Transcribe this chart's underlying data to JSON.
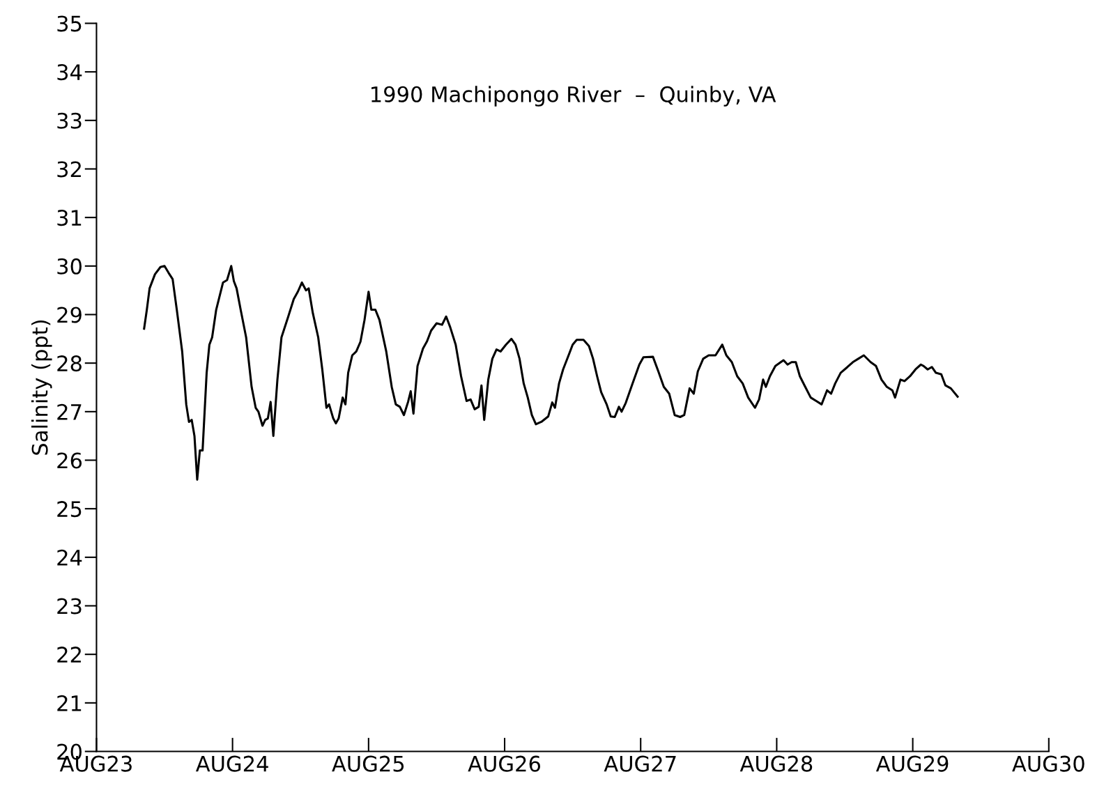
{
  "chart_data": {
    "type": "line",
    "title": "1990 Machipongo River  –  Quinby, VA",
    "ylabel": "Salinity (ppt)",
    "x": [
      "1990-08-23T08:24",
      "1990-08-23T08:53",
      "1990-08-23T09:22",
      "1990-08-23T10:19",
      "1990-08-23T11:17",
      "1990-08-23T12:00",
      "1990-08-23T12:43",
      "1990-08-23T13:26",
      "1990-08-23T14:10",
      "1990-08-23T15:07",
      "1990-08-23T15:50",
      "1990-08-23T16:19",
      "1990-08-23T16:48",
      "1990-08-23T17:17",
      "1990-08-23T17:46",
      "1990-08-23T18:14",
      "1990-08-23T18:43",
      "1990-08-23T19:26",
      "1990-08-23T19:55",
      "1990-08-23T20:24",
      "1990-08-23T21:07",
      "1990-08-23T22:19",
      "1990-08-23T23:02",
      "1990-08-23T23:46",
      "1990-08-24T00:14",
      "1990-08-24T00:43",
      "1990-08-24T01:26",
      "1990-08-24T02:24",
      "1990-08-24T03:22",
      "1990-08-24T04:05",
      "1990-08-24T04:34",
      "1990-08-24T05:17",
      "1990-08-24T05:46",
      "1990-08-24T06:14",
      "1990-08-24T06:43",
      "1990-08-24T07:12",
      "1990-08-24T07:55",
      "1990-08-24T08:38",
      "1990-08-24T09:50",
      "1990-08-24T10:48",
      "1990-08-24T11:31",
      "1990-08-24T12:14",
      "1990-08-24T12:58",
      "1990-08-24T13:26",
      "1990-08-24T14:10",
      "1990-08-24T15:07",
      "1990-08-24T15:50",
      "1990-08-24T16:34",
      "1990-08-24T17:02",
      "1990-08-24T17:46",
      "1990-08-24T18:14",
      "1990-08-24T18:43",
      "1990-08-24T19:26",
      "1990-08-24T19:55",
      "1990-08-24T20:24",
      "1990-08-24T21:07",
      "1990-08-24T21:50",
      "1990-08-24T22:34",
      "1990-08-24T23:17",
      "1990-08-25T00:00",
      "1990-08-25T00:29",
      "1990-08-25T01:12",
      "1990-08-25T01:55",
      "1990-08-25T03:07",
      "1990-08-25T04:05",
      "1990-08-25T04:48",
      "1990-08-25T05:31",
      "1990-08-25T06:14",
      "1990-08-25T06:58",
      "1990-08-25T07:26",
      "1990-08-25T07:55",
      "1990-08-25T08:38",
      "1990-08-25T09:36",
      "1990-08-25T10:19",
      "1990-08-25T11:02",
      "1990-08-25T12:00",
      "1990-08-25T12:58",
      "1990-08-25T13:41",
      "1990-08-25T14:24",
      "1990-08-25T15:22",
      "1990-08-25T16:19",
      "1990-08-25T17:17",
      "1990-08-25T18:00",
      "1990-08-25T18:43",
      "1990-08-25T19:26",
      "1990-08-25T19:55",
      "1990-08-25T20:24",
      "1990-08-25T21:07",
      "1990-08-25T21:50",
      "1990-08-25T22:34",
      "1990-08-25T23:17",
      "1990-08-26T00:14",
      "1990-08-26T01:12",
      "1990-08-26T01:55",
      "1990-08-26T02:38",
      "1990-08-26T03:22",
      "1990-08-26T04:05",
      "1990-08-26T04:48",
      "1990-08-26T05:31",
      "1990-08-26T06:29",
      "1990-08-26T07:41",
      "1990-08-26T08:24",
      "1990-08-26T08:53",
      "1990-08-26T09:36",
      "1990-08-26T10:19",
      "1990-08-26T11:17",
      "1990-08-26T12:00",
      "1990-08-26T12:43",
      "1990-08-26T13:55",
      "1990-08-26T14:53",
      "1990-08-26T15:36",
      "1990-08-26T16:19",
      "1990-08-26T17:02",
      "1990-08-26T18:00",
      "1990-08-26T18:43",
      "1990-08-26T19:26",
      "1990-08-26T20:10",
      "1990-08-26T20:38",
      "1990-08-26T21:22",
      "1990-08-26T22:34",
      "1990-08-26T23:46",
      "1990-08-27T00:29",
      "1990-08-27T02:10",
      "1990-08-27T03:07",
      "1990-08-27T04:05",
      "1990-08-27T05:02",
      "1990-08-27T06:00",
      "1990-08-27T06:58",
      "1990-08-27T07:41",
      "1990-08-27T08:38",
      "1990-08-27T09:22",
      "1990-08-27T10:05",
      "1990-08-27T11:02",
      "1990-08-27T12:00",
      "1990-08-27T13:12",
      "1990-08-27T14:24",
      "1990-08-27T15:07",
      "1990-08-27T16:05",
      "1990-08-27T17:02",
      "1990-08-27T18:00",
      "1990-08-27T18:58",
      "1990-08-27T20:10",
      "1990-08-27T20:53",
      "1990-08-27T21:36",
      "1990-08-27T22:05",
      "1990-08-27T22:48",
      "1990-08-27T23:46",
      "1990-08-28T00:43",
      "1990-08-28T01:12",
      "1990-08-28T01:55",
      "1990-08-28T02:38",
      "1990-08-28T03:22",
      "1990-08-28T04:05",
      "1990-08-28T05:02",
      "1990-08-28T06:00",
      "1990-08-28T06:58",
      "1990-08-28T07:55",
      "1990-08-28T08:53",
      "1990-08-28T09:36",
      "1990-08-28T10:19",
      "1990-08-28T11:17",
      "1990-08-28T12:29",
      "1990-08-28T13:26",
      "1990-08-28T14:24",
      "1990-08-28T15:22",
      "1990-08-28T16:34",
      "1990-08-28T17:31",
      "1990-08-28T18:29",
      "1990-08-28T19:26",
      "1990-08-28T20:24",
      "1990-08-28T20:53",
      "1990-08-28T21:50",
      "1990-08-28T22:34",
      "1990-08-28T23:31",
      "1990-08-29T00:29",
      "1990-08-29T01:26",
      "1990-08-29T01:55",
      "1990-08-29T02:38",
      "1990-08-29T03:22",
      "1990-08-29T04:05",
      "1990-08-29T05:02",
      "1990-08-29T05:46",
      "1990-08-29T06:43",
      "1990-08-29T07:55"
    ],
    "values": [
      28.71,
      29.1,
      29.54,
      29.83,
      29.98,
      30.0,
      29.86,
      29.73,
      29.1,
      28.24,
      27.15,
      26.79,
      26.83,
      26.5,
      25.6,
      26.2,
      26.2,
      27.8,
      28.38,
      28.53,
      29.1,
      29.66,
      29.71,
      30.0,
      29.69,
      29.54,
      29.1,
      28.53,
      27.51,
      27.08,
      27.0,
      26.71,
      26.83,
      26.86,
      27.2,
      26.5,
      27.66,
      28.53,
      28.96,
      29.32,
      29.47,
      29.66,
      29.5,
      29.54,
      29.03,
      28.53,
      27.87,
      27.08,
      27.15,
      26.86,
      26.76,
      26.86,
      27.29,
      27.15,
      27.8,
      28.16,
      28.24,
      28.44,
      28.89,
      29.47,
      29.1,
      29.1,
      28.89,
      28.24,
      27.51,
      27.15,
      27.1,
      26.93,
      27.2,
      27.42,
      26.96,
      27.94,
      28.3,
      28.45,
      28.67,
      28.82,
      28.79,
      28.96,
      28.74,
      28.38,
      27.73,
      27.22,
      27.25,
      27.05,
      27.1,
      27.54,
      26.83,
      27.66,
      28.09,
      28.28,
      28.24,
      28.38,
      28.5,
      28.38,
      28.09,
      27.58,
      27.29,
      26.93,
      26.74,
      26.79,
      26.9,
      27.19,
      27.08,
      27.58,
      27.87,
      28.16,
      28.38,
      28.48,
      28.48,
      28.35,
      28.09,
      27.73,
      27.4,
      27.15,
      26.9,
      26.89,
      27.1,
      27.0,
      27.18,
      27.58,
      27.97,
      28.12,
      28.13,
      27.83,
      27.51,
      27.37,
      26.93,
      26.89,
      26.93,
      27.48,
      27.37,
      27.83,
      28.09,
      28.16,
      28.16,
      28.38,
      28.16,
      28.02,
      27.73,
      27.58,
      27.29,
      27.08,
      27.25,
      27.66,
      27.51,
      27.73,
      27.94,
      28.02,
      28.06,
      27.97,
      28.02,
      28.02,
      27.73,
      27.51,
      27.29,
      27.22,
      27.15,
      27.44,
      27.37,
      27.58,
      27.8,
      27.92,
      28.02,
      28.09,
      28.16,
      28.02,
      27.94,
      27.66,
      27.51,
      27.44,
      27.29,
      27.66,
      27.63,
      27.73,
      27.87,
      27.97,
      27.94,
      27.87,
      27.92,
      27.8,
      27.77,
      27.54,
      27.48,
      27.31
    ],
    "color": "#000000",
    "xlim": [
      "1990-08-23",
      "1990-08-30"
    ],
    "xticks": [
      {
        "value": "1990-08-23",
        "label": "AUG23"
      },
      {
        "value": "1990-08-24",
        "label": "AUG24"
      },
      {
        "value": "1990-08-25",
        "label": "AUG25"
      },
      {
        "value": "1990-08-26",
        "label": "AUG26"
      },
      {
        "value": "1990-08-27",
        "label": "AUG27"
      },
      {
        "value": "1990-08-28",
        "label": "AUG28"
      },
      {
        "value": "1990-08-29",
        "label": "AUG29"
      },
      {
        "value": "1990-08-30",
        "label": "AUG30"
      }
    ],
    "ylim": [
      20,
      35
    ],
    "yticks": [
      20,
      21,
      22,
      23,
      24,
      25,
      26,
      27,
      28,
      29,
      30,
      31,
      32,
      33,
      34,
      35
    ],
    "grid": false,
    "legend": false
  }
}
